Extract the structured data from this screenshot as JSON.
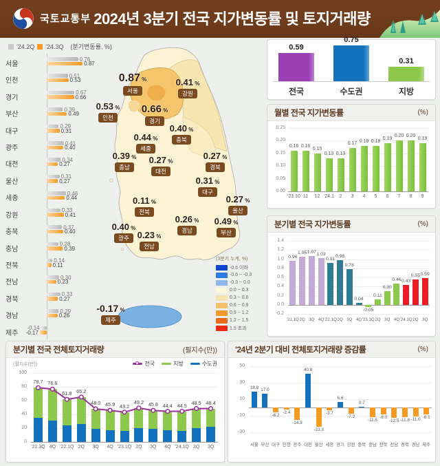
{
  "header": {
    "ministry": "국토교통부",
    "title": "2024년 3분기 전국 지가변동률 및 토지거래량"
  },
  "left_chart": {
    "unit": "(분기변동률, %)"
  },
  "map_legend": {
    "title": "(3분기 누계, %)",
    "items": [
      {
        "label": "-0.6 이하",
        "color": "#0b46cf"
      },
      {
        "label": "-0.6 ~ -0.3",
        "color": "#2f7ce0"
      },
      {
        "label": "-0.3 ~ 0.0",
        "color": "#8fb8ea"
      },
      {
        "label": "0.0 ~ 0.3",
        "color": "#fdf7d9"
      },
      {
        "label": "0.3 ~ 0.6",
        "color": "#f7e3ae"
      },
      {
        "label": "0.6 ~ 0.9",
        "color": "#f4c169"
      },
      {
        "label": "0.9 ~ 1.2",
        "color": "#f0992c"
      },
      {
        "label": "1.2 ~ 1.5",
        "color": "#e96a1b"
      },
      {
        "label": "1.5 초과",
        "color": "#ea2a10"
      }
    ]
  },
  "panels": {
    "monthly": {
      "title": "월별 전국 지가변동률",
      "unit": "(%)"
    },
    "quarterly": {
      "title": "분기별 전국 지가변동률",
      "unit": "(%)"
    },
    "transactions": {
      "title": "분기별 전국 전체토지거래량",
      "unit": "(필지수(만))",
      "axis_label": "(필지수(만))",
      "legend": [
        {
          "label": "전국",
          "color": "#993399",
          "marker": "line-circle"
        },
        {
          "label": "지방",
          "color": "#8cc94c",
          "marker": "line"
        },
        {
          "label": "수도권",
          "color": "#1272bd",
          "marker": "line"
        }
      ]
    },
    "change": {
      "title": "'24년 2분기 대비 전체토지거래량 증감률",
      "unit": "(%)"
    }
  },
  "chart_data": [
    {
      "id": "regional-hbar",
      "type": "bar",
      "orientation": "horizontal",
      "unit": "분기변동률 %",
      "categories": [
        "서울",
        "인천",
        "경기",
        "부산",
        "대구",
        "광주",
        "대전",
        "울산",
        "세종",
        "강원",
        "충북",
        "충남",
        "전북",
        "전남",
        "경북",
        "경남",
        "제주"
      ],
      "series": [
        {
          "name": "'24.2Q",
          "color": "#c9c9c9",
          "values": [
            0.76,
            0.51,
            0.67,
            0.39,
            0.29,
            0.41,
            0.34,
            0.31,
            0.46,
            0.33,
            0.37,
            0.28,
            0.14,
            0.3,
            0.33,
            0.29,
            -0.14
          ]
        },
        {
          "name": "'24.3Q",
          "color": "#f59a23",
          "values": [
            0.87,
            0.53,
            0.66,
            0.49,
            0.31,
            0.4,
            0.27,
            0.27,
            0.44,
            0.41,
            0.4,
            0.39,
            0.11,
            0.23,
            0.27,
            0.26,
            -0.17
          ]
        }
      ]
    },
    {
      "id": "map-cumulative",
      "type": "heatmap",
      "title": "3분기 누계 지가변동률",
      "unit": "%",
      "regions": [
        {
          "name": "서울",
          "value": 0.87
        },
        {
          "name": "강원",
          "value": 0.41
        },
        {
          "name": "인천",
          "value": 0.53
        },
        {
          "name": "경기",
          "value": 0.66
        },
        {
          "name": "충북",
          "value": 0.4
        },
        {
          "name": "세종",
          "value": 0.44
        },
        {
          "name": "충남",
          "value": 0.39
        },
        {
          "name": "대전",
          "value": 0.27
        },
        {
          "name": "경북",
          "value": 0.27
        },
        {
          "name": "대구",
          "value": 0.31
        },
        {
          "name": "전북",
          "value": 0.11
        },
        {
          "name": "울산",
          "value": 0.27
        },
        {
          "name": "광주",
          "value": 0.4
        },
        {
          "name": "경남",
          "value": 0.26
        },
        {
          "name": "부산",
          "value": 0.49
        },
        {
          "name": "전남",
          "value": 0.23
        },
        {
          "name": "제주",
          "value": -0.17
        }
      ]
    },
    {
      "id": "summary",
      "type": "bar",
      "categories": [
        "전국",
        "수도권",
        "지방"
      ],
      "values": [
        0.59,
        0.75,
        0.31
      ],
      "colors": [
        "#9b3fb5",
        "#1272bd",
        "#8cc94c"
      ]
    },
    {
      "id": "monthly",
      "type": "bar",
      "title": "월별 전국 지가변동률",
      "ylabel": "%",
      "ylim": [
        0,
        0.25
      ],
      "ytick_step": 0.05,
      "color": "#8cc94c",
      "categories": [
        "'23.10",
        "11",
        "12",
        "'24.1",
        "2",
        "3",
        "4",
        "5",
        "6",
        "7",
        "8",
        "9"
      ],
      "values": [
        0.16,
        0.16,
        0.15,
        0.13,
        0.13,
        0.17,
        0.18,
        0.18,
        0.19,
        0.2,
        0.2,
        0.19
      ]
    },
    {
      "id": "quarterly",
      "type": "bar",
      "title": "분기별 전국 지가변동률",
      "ylabel": "%",
      "ylim": [
        -0.2,
        1.4
      ],
      "ytick_step": 0.2,
      "categories": [
        "'21.1Q",
        "2Q",
        "3Q",
        "4Q",
        "'22.1Q",
        "2Q",
        "3Q",
        "4Q",
        "'23.1Q",
        "2Q",
        "3Q",
        "4Q",
        "'24.1Q",
        "2Q",
        "3Q"
      ],
      "values": [
        0.96,
        1.05,
        1.07,
        1.03,
        0.91,
        0.98,
        0.78,
        0.04,
        -0.05,
        0.11,
        0.3,
        0.46,
        0.43,
        0.55,
        0.59
      ],
      "group_colors": [
        "#c2abd6",
        "#2e7d92",
        "#8cc94c",
        "#ed1c24"
      ],
      "group_of": [
        0,
        0,
        0,
        0,
        1,
        1,
        1,
        1,
        2,
        2,
        2,
        2,
        3,
        3,
        3
      ]
    },
    {
      "id": "transactions",
      "type": "bar+line",
      "title": "분기별 전국 전체토지거래량",
      "ylabel": "필지수(만)",
      "ylim": [
        0,
        100
      ],
      "ytick_step": 20,
      "categories": [
        "'21.3Q",
        "4Q",
        "'22.1Q",
        "2Q",
        "3Q",
        "4Q",
        "'23.1Q",
        "2Q",
        "3Q",
        "4Q",
        "'24.1Q",
        "2Q",
        "3Q"
      ],
      "series": [
        {
          "name": "수도권",
          "color": "#1272bd",
          "values": [
            35,
            31,
            24,
            26,
            19,
            17,
            16,
            20,
            19,
            17,
            16,
            20,
            22
          ]
        },
        {
          "name": "지방",
          "color": "#8cc94c",
          "values": [
            43.7,
            45.6,
            37.8,
            39.2,
            29.0,
            28.9,
            27.2,
            29.2,
            26.8,
            27.4,
            28.5,
            28.5,
            26.4
          ]
        }
      ],
      "line": {
        "name": "전국",
        "color": "#993399",
        "values": [
          78.7,
          76.6,
          61.8,
          65.2,
          48.0,
          45.9,
          43.2,
          49.2,
          45.8,
          44.4,
          44.5,
          48.5,
          48.4
        ]
      }
    },
    {
      "id": "change-vs-q2",
      "type": "bar",
      "title": "'24년 2분기 대비 전체토지거래량 증감률",
      "ylabel": "%",
      "ylim": [
        -30,
        50
      ],
      "yticks": [
        50,
        30,
        10,
        -10,
        -30
      ],
      "pos_color": "#1272bd",
      "neg_color": "#f59a23",
      "categories": [
        "서울",
        "부산",
        "대구",
        "인천",
        "광주",
        "대전",
        "울산",
        "세종",
        "경기",
        "강원",
        "충북",
        "충남",
        "전북",
        "전남",
        "경북",
        "경남",
        "제주"
      ],
      "values": [
        18.8,
        17.0,
        -6.2,
        -2.4,
        -14.9,
        40.8,
        -23.3,
        -3.7,
        6.6,
        -7.2,
        0.7,
        -11.5,
        -8.0,
        -12.5,
        -11.8,
        -11.0,
        -8.1
      ]
    }
  ]
}
